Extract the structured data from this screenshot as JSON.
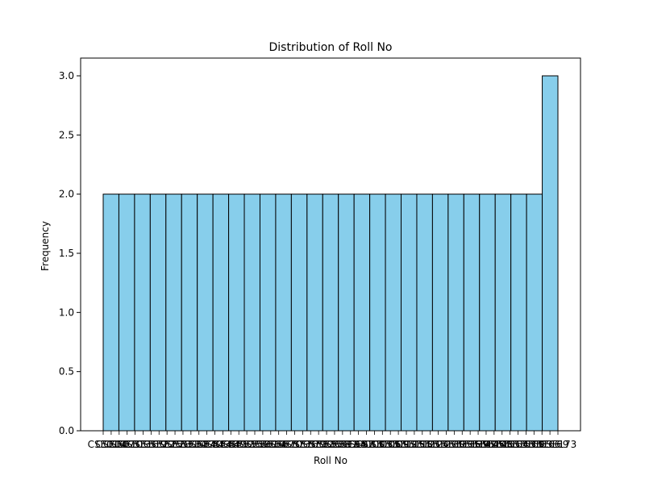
{
  "chart_data": {
    "type": "bar",
    "title": "Distribution of Roll No",
    "xlabel": "Roll No",
    "ylabel": "Frequency",
    "ylim": [
      0,
      3.15
    ],
    "yticks": [
      "0.0",
      "0.5",
      "1.0",
      "1.5",
      "2.0",
      "2.5",
      "3.0"
    ],
    "ytick_values": [
      0,
      0.5,
      1.0,
      1.5,
      2.0,
      2.5,
      3.0
    ],
    "xtick_labels": [
      "CSE01",
      "CSE04",
      "CSE07",
      "CSE10",
      "CSE13",
      "CSE16",
      "CSE19",
      "CSE22",
      "CSE25",
      "CSE28",
      "CSE31",
      "CSE34",
      "CSE37",
      "CSE40",
      "CSE43",
      "CSE46",
      "CSE49",
      "CSE52",
      "CSE55",
      "CSE58",
      "CSE61",
      "CSE64",
      "CSE67",
      "CSE70",
      "CSE73",
      "CSE76",
      "CSE79",
      "CSE82",
      "CSE85",
      "CSE88",
      "CSE91",
      "CSE94",
      "CSE97",
      "CSE100",
      "CSE103",
      "CSE106",
      "CSE109",
      "CSE112",
      "CSE115",
      "CSE118",
      "CSE121",
      "CSE124",
      "CSE127",
      "CSE130",
      "CSE133",
      "CSE136",
      "CSE139",
      "CSE142",
      "CSE145",
      "CSE148",
      "CSE151",
      "CSE154",
      "CSE157",
      "CSE160",
      "CSE163",
      "CSE166",
      "CSE169",
      "CSE173"
    ],
    "values": [
      2,
      2,
      2,
      2,
      2,
      2,
      2,
      2,
      2,
      2,
      2,
      2,
      2,
      2,
      2,
      2,
      2,
      2,
      2,
      2,
      2,
      2,
      2,
      2,
      2,
      2,
      2,
      2,
      3
    ],
    "grid": false,
    "colors": {
      "bar_fill": "#87ceeb",
      "bar_edge": "#000000",
      "axis": "#000000"
    }
  }
}
